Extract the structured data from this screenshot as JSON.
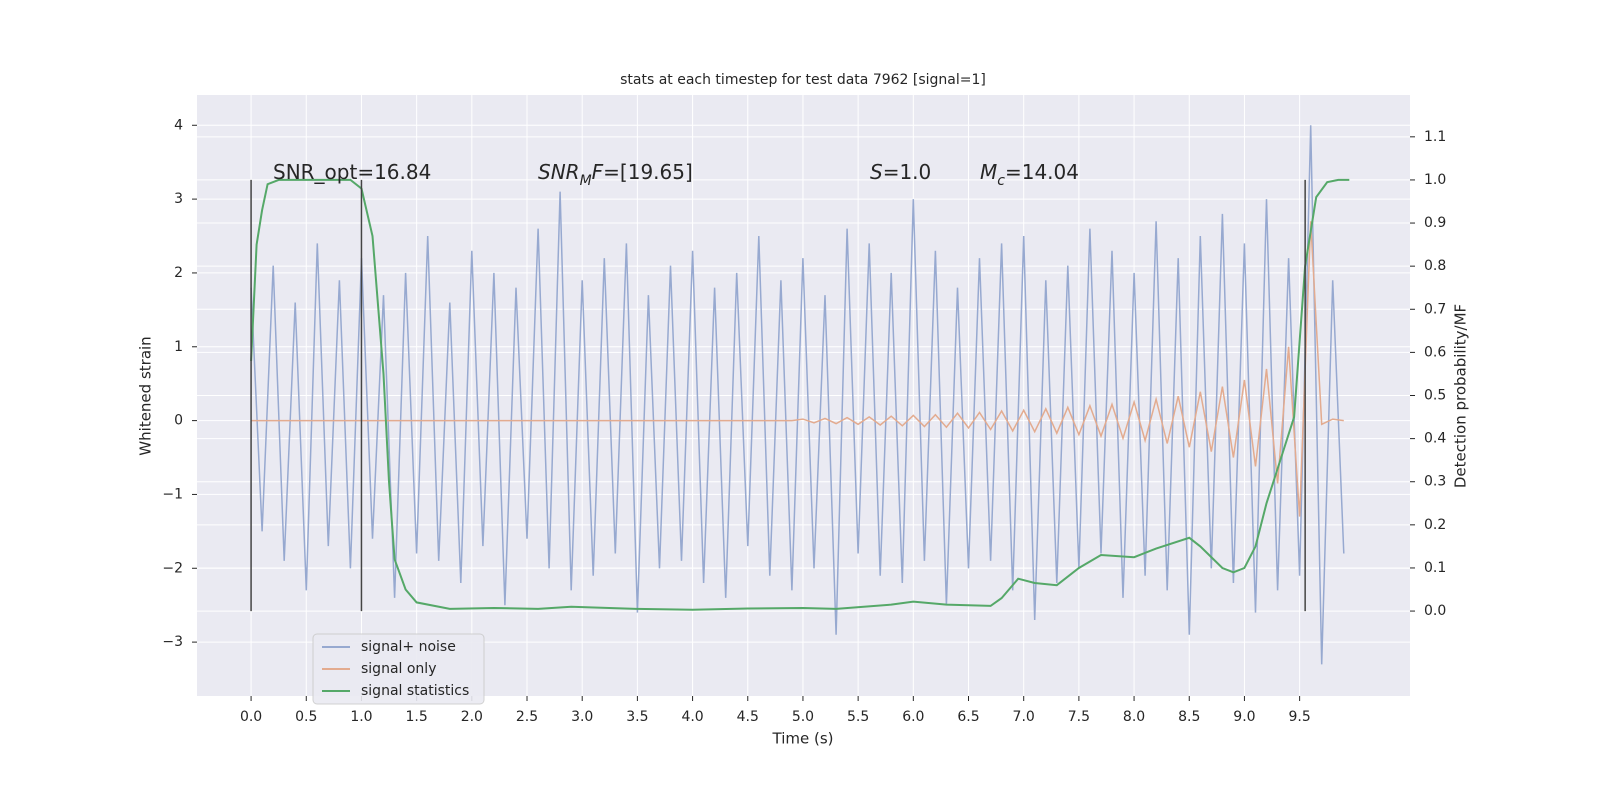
{
  "chart_data": {
    "type": "line",
    "title": "stats at each timestep for test data 7962 [signal=1]",
    "xlabel": "Time (s)",
    "ylabel": "Whitened strain",
    "y2label": "Detection probability/MF",
    "grid": true,
    "legend": "lower left",
    "xlim": [
      -0.49,
      10.5
    ],
    "ylim": [
      -3.73,
      4.41
    ],
    "y2lim": [
      -0.197,
      1.197
    ],
    "xticks": [
      {
        "value": 0,
        "label": "0.0"
      },
      0.5,
      {
        "value": 1,
        "label": "1.0"
      },
      1.5,
      {
        "value": 2,
        "label": "2.0"
      },
      2.5,
      {
        "value": 3,
        "label": "3.0"
      },
      3.5,
      {
        "value": 4,
        "label": "4.0"
      },
      4.5,
      {
        "value": 5,
        "label": "5.0"
      },
      5.5,
      {
        "value": 6,
        "label": "6.0"
      },
      6.5,
      {
        "value": 7,
        "label": "7.0"
      },
      7.5,
      {
        "value": 8,
        "label": "8.0"
      },
      8.5,
      {
        "value": 9,
        "label": "9.0"
      },
      9.5
    ],
    "yticks": [
      {
        "value": -3,
        "label": "−3"
      },
      {
        "value": -2,
        "label": "−2"
      },
      {
        "value": -1,
        "label": "−1"
      },
      0,
      1,
      2,
      3,
      4
    ],
    "y2ticks": [
      {
        "value": 0,
        "label": "0.0"
      },
      0.1,
      0.2,
      0.3,
      0.4,
      0.5,
      0.6,
      0.7,
      0.8,
      0.9,
      {
        "value": 1,
        "label": "1.0"
      },
      1.1
    ],
    "vlines": [
      0,
      1.0,
      9.55
    ],
    "annotations": [
      [
        {
          "text": "SNR_opt=16.84"
        }
      ],
      [
        {
          "text": "SNR",
          "italic": true
        },
        {
          "text": "M",
          "italic": true,
          "sub": true
        },
        {
          "text": "F",
          "italic": true
        },
        {
          "text": "=[19.65]"
        }
      ],
      [
        {
          "text": "S",
          "italic": true
        },
        {
          "text": "=1.0"
        }
      ],
      [
        {
          "text": "M",
          "italic": true
        },
        {
          "text": "c",
          "italic": true,
          "sub": true
        },
        {
          "text": "=14.04"
        }
      ]
    ],
    "x": [
      0.0,
      0.1,
      0.2,
      0.3,
      0.4,
      0.5,
      0.6,
      0.7,
      0.8,
      0.9,
      1.0,
      1.1,
      1.2,
      1.3,
      1.4,
      1.5,
      1.6,
      1.7,
      1.8,
      1.9,
      2.0,
      2.1,
      2.2,
      2.3,
      2.4,
      2.5,
      2.6,
      2.7,
      2.8,
      2.9,
      3.0,
      3.1,
      3.2,
      3.3,
      3.4,
      3.5,
      3.6,
      3.7,
      3.8,
      3.9,
      4.0,
      4.1,
      4.2,
      4.3,
      4.4,
      4.5,
      4.6,
      4.7,
      4.8,
      4.9,
      5.0,
      5.1,
      5.2,
      5.3,
      5.4,
      5.5,
      5.6,
      5.7,
      5.8,
      5.9,
      6.0,
      6.1,
      6.2,
      6.3,
      6.4,
      6.5,
      6.6,
      6.7,
      6.8,
      6.9,
      7.0,
      7.1,
      7.2,
      7.3,
      7.4,
      7.5,
      7.6,
      7.7,
      7.8,
      7.9,
      8.0,
      8.1,
      8.2,
      8.3,
      8.4,
      8.5,
      8.6,
      8.7,
      8.8,
      8.9,
      9.0,
      9.1,
      9.2,
      9.3,
      9.4,
      9.5,
      9.6,
      9.7,
      9.8,
      9.9
    ],
    "series": [
      {
        "name": "signal+ noise",
        "color": "#97a9d0",
        "values": [
          1.8,
          -1.5,
          2.1,
          -1.9,
          1.6,
          -2.3,
          2.4,
          -1.7,
          1.9,
          -2.0,
          2.2,
          -1.6,
          1.7,
          -2.4,
          2.0,
          -1.8,
          2.5,
          -1.9,
          1.6,
          -2.2,
          2.3,
          -1.7,
          2.0,
          -2.5,
          1.8,
          -1.6,
          2.6,
          -2.0,
          3.1,
          -2.3,
          1.9,
          -2.1,
          2.2,
          -1.8,
          2.4,
          -2.6,
          1.7,
          -2.0,
          2.1,
          -1.9,
          2.3,
          -2.2,
          1.8,
          -2.4,
          2.0,
          -1.7,
          2.5,
          -2.1,
          1.9,
          -2.3,
          2.2,
          -2.0,
          1.7,
          -2.9,
          2.6,
          -1.8,
          2.4,
          -2.1,
          2.0,
          -2.2,
          3.0,
          -1.9,
          2.3,
          -2.5,
          1.8,
          -2.0,
          2.2,
          -1.9,
          2.4,
          -2.3,
          2.5,
          -2.7,
          1.9,
          -2.2,
          2.1,
          -2.0,
          2.6,
          -1.8,
          2.3,
          -2.4,
          2.0,
          -2.1,
          2.7,
          -2.3,
          2.2,
          -2.9,
          2.5,
          -2.0,
          2.8,
          -2.2,
          2.4,
          -2.6,
          3.0,
          -2.3,
          2.2,
          -2.1,
          4.0,
          -3.3,
          1.9,
          -1.8
        ]
      },
      {
        "name": "signal only",
        "color": "#e3ab8f",
        "values": [
          0,
          0,
          0,
          0,
          0,
          0,
          0,
          0,
          0,
          0,
          0,
          0,
          0,
          0,
          0,
          0,
          0,
          0,
          0,
          0,
          0,
          0,
          0,
          0,
          0,
          0,
          0,
          0,
          0,
          0,
          0,
          0,
          0,
          0,
          0,
          0,
          0,
          0,
          0,
          0,
          0,
          0,
          0,
          0,
          0,
          0,
          0,
          0,
          0,
          0,
          0.02,
          -0.03,
          0.03,
          -0.04,
          0.04,
          -0.05,
          0.05,
          -0.06,
          0.06,
          -0.07,
          0.07,
          -0.08,
          0.08,
          -0.09,
          0.1,
          -0.1,
          0.11,
          -0.12,
          0.13,
          -0.14,
          0.14,
          -0.15,
          0.16,
          -0.17,
          0.18,
          -0.19,
          0.2,
          -0.21,
          0.22,
          -0.24,
          0.25,
          -0.27,
          0.29,
          -0.31,
          0.33,
          -0.36,
          0.39,
          -0.42,
          0.46,
          -0.5,
          0.55,
          -0.62,
          0.7,
          -0.85,
          1.0,
          -1.3,
          2.7,
          -0.05,
          0.02,
          0.0
        ]
      },
      {
        "name": "signal statistics",
        "color": "#55a868",
        "axis": "y2",
        "x": [
          0.0,
          0.05,
          0.1,
          0.15,
          0.25,
          0.9,
          1.0,
          1.1,
          1.2,
          1.25,
          1.3,
          1.4,
          1.5,
          1.8,
          2.2,
          2.6,
          2.9,
          3.5,
          4.0,
          4.5,
          5.0,
          5.3,
          5.8,
          6.0,
          6.3,
          6.7,
          6.8,
          6.95,
          7.1,
          7.3,
          7.5,
          7.7,
          8.0,
          8.2,
          8.5,
          8.6,
          8.8,
          8.9,
          9.0,
          9.1,
          9.2,
          9.35,
          9.45,
          9.55,
          9.65,
          9.75,
          9.85,
          9.95
        ],
        "values": [
          0.58,
          0.85,
          0.93,
          0.99,
          1.0,
          1.0,
          0.98,
          0.87,
          0.55,
          0.3,
          0.12,
          0.05,
          0.02,
          0.005,
          0.007,
          0.005,
          0.01,
          0.005,
          0.003,
          0.006,
          0.007,
          0.005,
          0.015,
          0.022,
          0.015,
          0.012,
          0.03,
          0.075,
          0.065,
          0.06,
          0.1,
          0.13,
          0.125,
          0.145,
          0.17,
          0.15,
          0.1,
          0.09,
          0.1,
          0.15,
          0.25,
          0.37,
          0.45,
          0.8,
          0.96,
          0.995,
          1.0,
          1.0
        ]
      }
    ]
  }
}
